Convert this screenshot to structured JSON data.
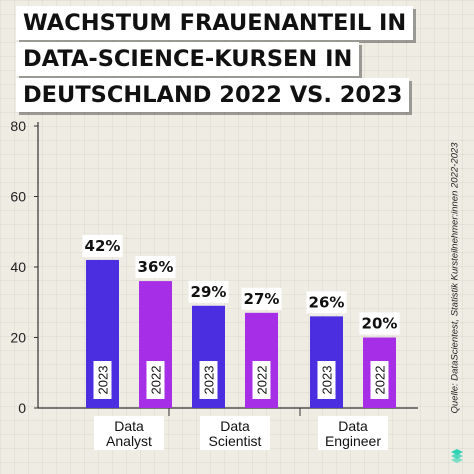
{
  "title_lines": [
    "WACHSTUM FRAUENANTEIL IN",
    "DATA-SCIENCE-KURSEN IN",
    "DEUTSCHLAND 2022 VS. 2023"
  ],
  "source_note": "Quelle: DataScientest, Statistik Kursteilnehmer:innen 2022-2023",
  "colors": {
    "2023": "#4b2ee0",
    "2022": "#a62ee6",
    "background": "#efece4",
    "axis": "#333333",
    "accent_logo": "#2fd3b4"
  },
  "icons": {
    "logo": "brand-logo-icon"
  },
  "chart_data": {
    "type": "bar",
    "title": "WACHSTUM FRAUENANTEIL IN DATA-SCIENCE-KURSEN IN DEUTSCHLAND 2022 VS. 2023",
    "categories": [
      "Data Analyst",
      "Data Scientist",
      "Data Engineer"
    ],
    "category_label_lines": [
      [
        "Data",
        "Analyst"
      ],
      [
        "Data",
        "Scientist"
      ],
      [
        "Data",
        "Engineer"
      ]
    ],
    "series": [
      {
        "name": "2023",
        "values": [
          42,
          29,
          26
        ],
        "labels": [
          "42%",
          "29%",
          "26%"
        ]
      },
      {
        "name": "2022",
        "values": [
          36,
          27,
          20
        ],
        "labels": [
          "36%",
          "27%",
          "20%"
        ]
      }
    ],
    "ylim": [
      0,
      80
    ],
    "yticks": [
      0,
      20,
      40,
      60,
      80
    ],
    "xlabel": "",
    "ylabel": "",
    "grid": false,
    "legend": "none"
  }
}
